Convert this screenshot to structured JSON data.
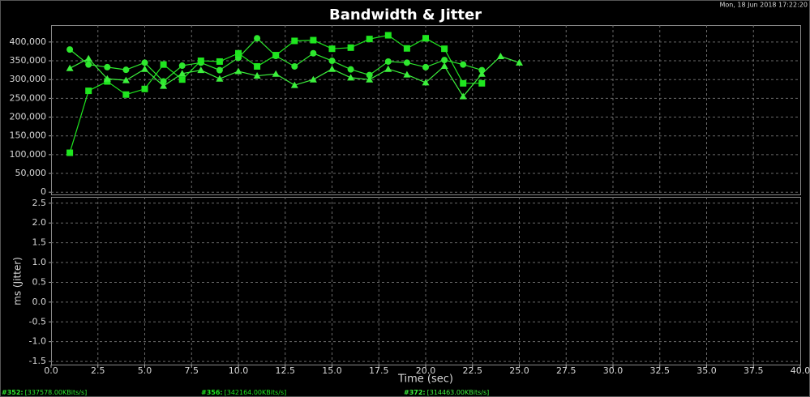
{
  "timestamp": "Mon, 18 Jun 2018 17:22:20",
  "chart_data": [
    {
      "type": "line",
      "title": "Bandwidth & Jitter",
      "x": [
        1,
        2,
        3,
        4,
        5,
        6,
        7,
        8,
        9,
        10,
        11,
        12,
        13,
        14,
        15,
        16,
        17,
        18,
        19,
        20,
        21,
        22,
        23,
        24,
        25
      ],
      "xlim": [
        0,
        40
      ],
      "ylim": [
        -6000,
        445000
      ],
      "yticks": [
        0,
        {
          "value": 50000,
          "label": "50,000"
        },
        {
          "value": 100000,
          "label": "100,000"
        },
        {
          "value": 150000,
          "label": "150,000"
        },
        {
          "value": 200000,
          "label": "200,000"
        },
        {
          "value": 250000,
          "label": "250,000"
        },
        {
          "value": 300000,
          "label": "300,000"
        },
        {
          "value": 350000,
          "label": "350,000"
        },
        {
          "value": 400000,
          "label": "400,000"
        }
      ],
      "grid": true,
      "series": [
        {
          "name": "#352:",
          "summary": "[337578.00KBits/s]",
          "marker": "circle",
          "color": "#2ee82e",
          "values": [
            380000,
            340000,
            333000,
            326000,
            345000,
            295000,
            337000,
            345000,
            325000,
            358000,
            410000,
            363000,
            335000,
            370000,
            350000,
            327000,
            312000,
            348000,
            345000,
            333000,
            352000,
            340000,
            325000,
            null,
            null
          ]
        },
        {
          "name": "#356:",
          "summary": "[342164.00KBits/s]",
          "marker": "square",
          "color": "#1fe61f",
          "values": [
            105000,
            270000,
            295000,
            260000,
            275000,
            340000,
            300000,
            350000,
            348000,
            370000,
            335000,
            365000,
            403000,
            405000,
            382000,
            385000,
            408000,
            418000,
            383000,
            410000,
            382000,
            290000,
            290000,
            null,
            null
          ]
        },
        {
          "name": "#372:",
          "summary": "[314463.00KBits/s]",
          "marker": "triangle",
          "color": "#3cf03c",
          "values": [
            330000,
            356000,
            302000,
            298000,
            328000,
            283000,
            316000,
            325000,
            302000,
            322000,
            310000,
            315000,
            285000,
            300000,
            328000,
            305000,
            300000,
            328000,
            313000,
            292000,
            336000,
            255000,
            315000,
            362000,
            345000
          ]
        }
      ]
    },
    {
      "type": "line",
      "x_label": "Time (sec)",
      "y_label": "ms (Jitter)",
      "xlim": [
        0,
        40
      ],
      "xticks": [
        {
          "value": 0,
          "label": "0.0"
        },
        2.5,
        {
          "value": 5,
          "label": "5.0"
        },
        7.5,
        {
          "value": 10,
          "label": "10.0"
        },
        12.5,
        {
          "value": 15,
          "label": "15.0"
        },
        17.5,
        {
          "value": 20,
          "label": "20.0"
        },
        22.5,
        {
          "value": 25,
          "label": "25.0"
        },
        27.5,
        {
          "value": 30,
          "label": "30.0"
        },
        32.5,
        {
          "value": 35,
          "label": "35.0"
        },
        37.5,
        {
          "value": 40,
          "label": "40.0"
        }
      ],
      "ylim": [
        -1.58,
        2.66
      ],
      "yticks": [
        -1.5,
        {
          "value": -1,
          "label": "-1.0"
        },
        -0.5,
        {
          "value": 0,
          "label": "0.0"
        },
        0.5,
        {
          "value": 1,
          "label": "1.0"
        },
        1.5,
        {
          "value": 2,
          "label": "2.0"
        },
        2.5
      ],
      "grid": true,
      "series": []
    }
  ]
}
